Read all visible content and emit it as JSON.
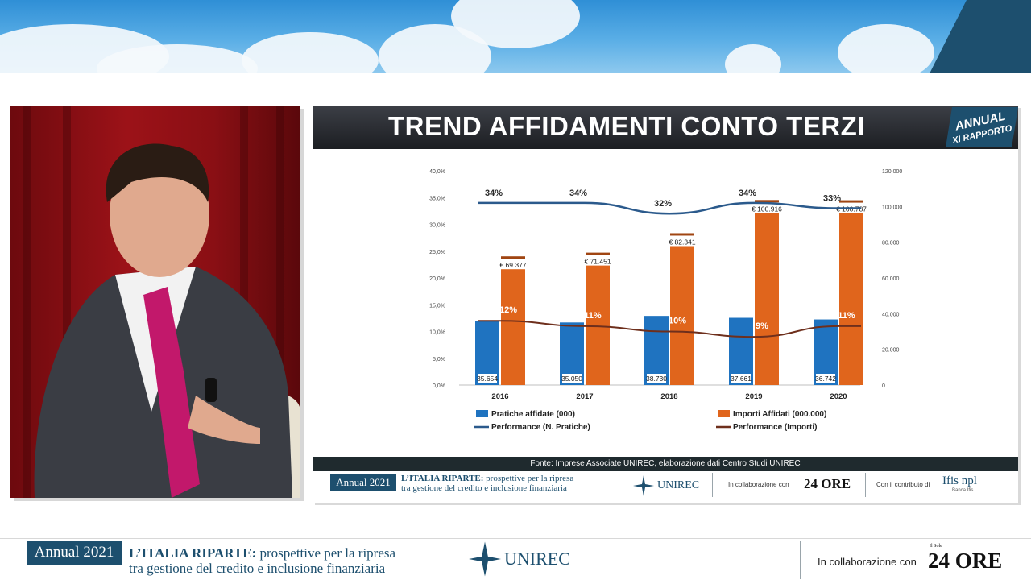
{
  "slide": {
    "title": "TREND AFFIDAMENTI CONTO TERZI",
    "badge_line1": "ANNUAL",
    "badge_line2": "XI RAPPORTO",
    "source": "Fonte: Imprese Associate UNIREC, elaborazione dati Centro Studi UNIREC"
  },
  "branding": {
    "annual": "Annual 2021",
    "title_bold": "L’ITALIA RIPARTE:",
    "title_rest": " prospettive per la ripresa",
    "title_line2": "tra gestione del credito e inclusione finanziaria",
    "unirec": "UNIREC",
    "collab": "In collaborazione con",
    "sole_small": "Il Sole",
    "sole": "24 ORE",
    "contrib": "Con il contributo di",
    "ifis": "Ifis npl",
    "ifis_small": "Banca Ifis"
  },
  "colors": {
    "blue_bar": "#1f73c0",
    "orange_bar": "#e0651c",
    "perf_pratiche": "#2b5a8c",
    "perf_importi": "#6e2f1c",
    "navy": "#1d4f6e"
  },
  "chart_data": {
    "type": "bar",
    "categories": [
      "2016",
      "2017",
      "2018",
      "2019",
      "2020"
    ],
    "series": [
      {
        "name": "Pratiche affidate (000)",
        "kind": "bar",
        "axis": "right",
        "values": [
          35654,
          35050,
          38730,
          37661,
          36742
        ],
        "labels": [
          "35.654",
          "35.050",
          "38.730",
          "37.661",
          "36.742"
        ]
      },
      {
        "name": "Importi Affidati (000.000)",
        "kind": "bar",
        "axis": "right",
        "values": [
          69377,
          71451,
          82341,
          100916,
          100787
        ],
        "labels": [
          "€ 69.377",
          "€ 71.451",
          "€ 82.341",
          "€ 100.916",
          "€ 100.787"
        ]
      },
      {
        "name": "Performance (N. Pratiche)",
        "kind": "line",
        "axis": "left",
        "values": [
          34,
          34,
          32,
          34,
          33
        ],
        "labels": [
          "34%",
          "34%",
          "32%",
          "34%",
          "33%"
        ]
      },
      {
        "name": "Performance (Importi)",
        "kind": "line",
        "axis": "left",
        "values": [
          12,
          11,
          10,
          9,
          11
        ],
        "labels": [
          "12%",
          "11%",
          "10%",
          "9%",
          "11%"
        ]
      }
    ],
    "left_axis": {
      "min": 0,
      "max": 40,
      "ticks": [
        "0,0%",
        "5,0%",
        "10,0%",
        "15,0%",
        "20,0%",
        "25,0%",
        "30,0%",
        "35,0%",
        "40,0%"
      ]
    },
    "right_axis": {
      "min": 0,
      "max": 120000,
      "ticks": [
        "0",
        "20.000",
        "40.000",
        "60.000",
        "80.000",
        "100.000",
        "120.000"
      ]
    },
    "legend_position": "bottom",
    "grid": false
  }
}
